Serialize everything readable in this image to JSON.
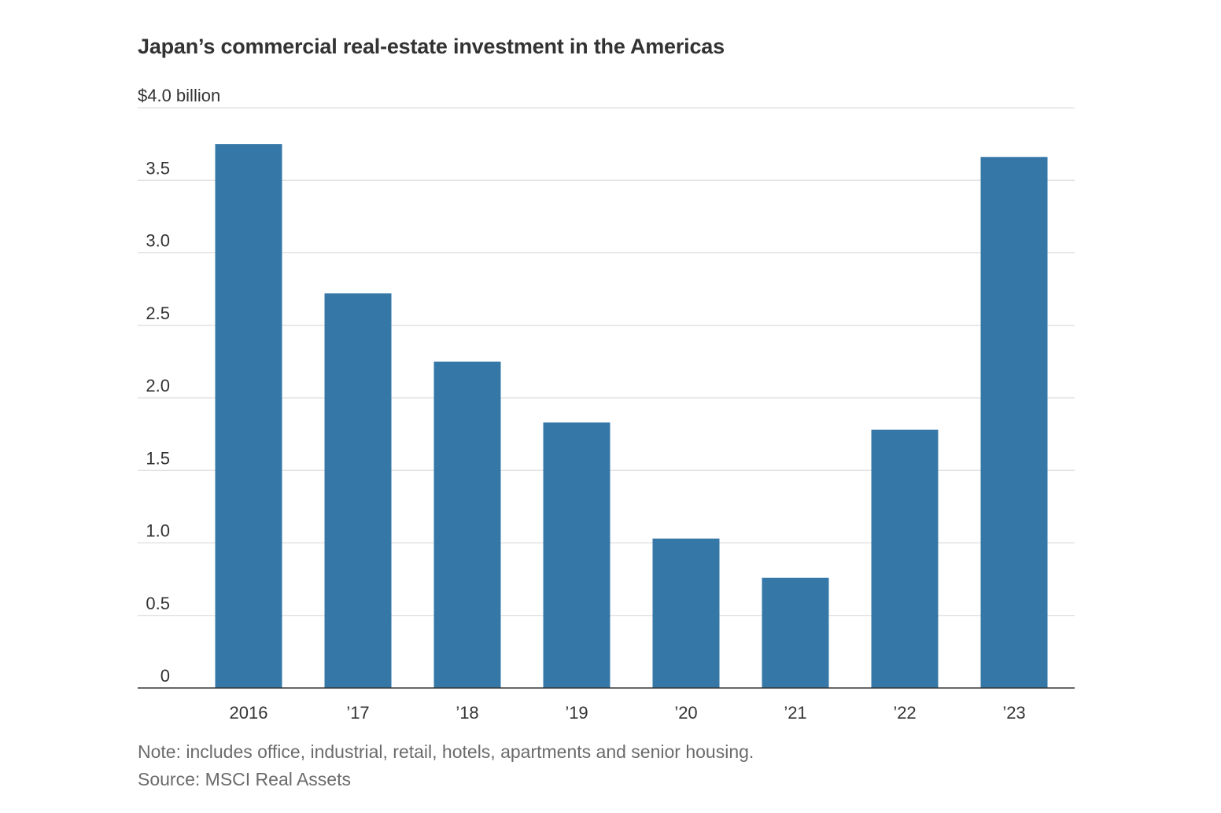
{
  "chart_data": {
    "type": "bar",
    "title": "Japan’s commercial real-estate investment in the Americas",
    "ylabel": "$4.0 billion",
    "xlabel": "",
    "categories": [
      "2016",
      "’17",
      "’18",
      "’19",
      "’20",
      "’21",
      "’22",
      "’23"
    ],
    "values": [
      3.75,
      2.72,
      2.25,
      1.83,
      1.03,
      0.76,
      1.78,
      3.66
    ],
    "ylim": [
      0,
      4.0
    ],
    "yticks": [
      0,
      0.5,
      1.0,
      1.5,
      2.0,
      2.5,
      3.0,
      3.5,
      4.0
    ],
    "ytick_labels": [
      "0",
      "0.5",
      "1.0",
      "1.5",
      "2.0",
      "2.5",
      "3.0",
      "3.5",
      "$4.0 billion"
    ],
    "grid": true,
    "legend": "none",
    "bar_color": "#3578a8",
    "note": "Note: includes office, industrial, retail, hotels, apartments and senior housing.",
    "source": "Source: MSCI Real Assets"
  }
}
